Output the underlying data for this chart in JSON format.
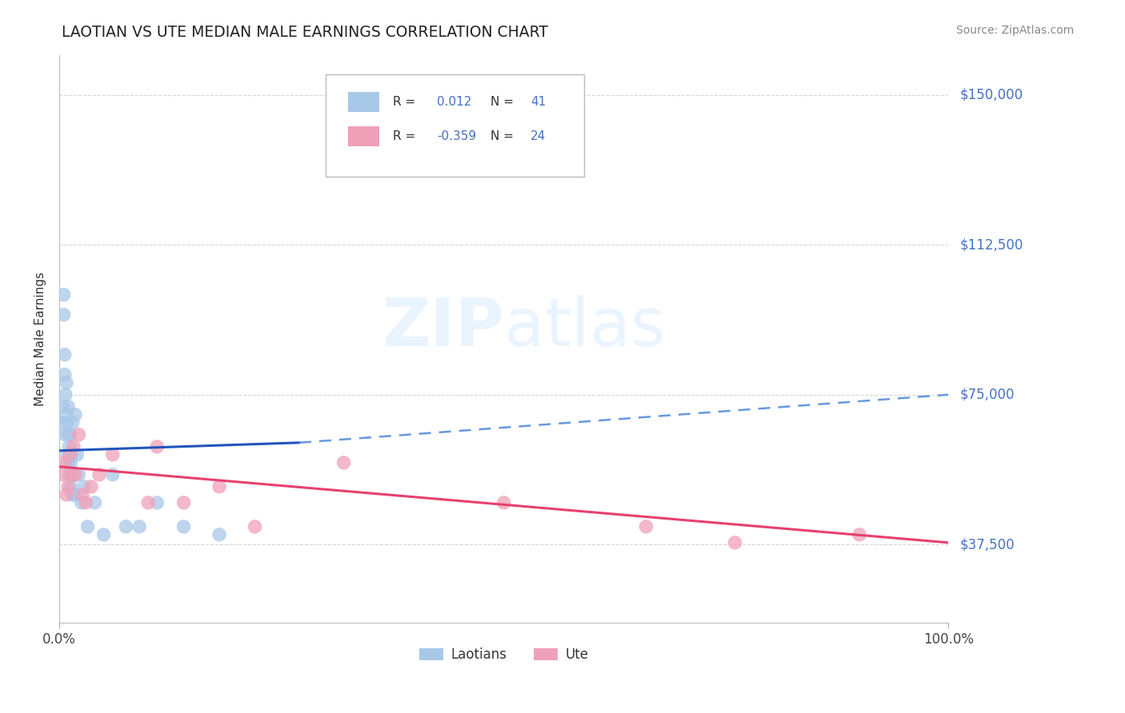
{
  "title": "LAOTIAN VS UTE MEDIAN MALE EARNINGS CORRELATION CHART",
  "source": "Source: ZipAtlas.com",
  "ylabel": "Median Male Earnings",
  "xlim": [
    0,
    1.0
  ],
  "ylim": [
    18000,
    160000
  ],
  "xtick_labels": [
    "0.0%",
    "100.0%"
  ],
  "ytick_values": [
    37500,
    75000,
    112500,
    150000
  ],
  "ytick_labels": [
    "$37,500",
    "$75,000",
    "$112,500",
    "$150,000"
  ],
  "laotian_color": "#a8c8e8",
  "ute_color": "#f0a0b8",
  "trend_laotian_solid_color": "#2255bb",
  "trend_laotian_dash_color": "#6699dd",
  "trend_ute_color": "#e84070",
  "watermark_color": "#ddeeff",
  "background_color": "#ffffff",
  "grid_color": "#cccccc",
  "ytick_color": "#4472c4",
  "laotian_x": [
    0.002,
    0.004,
    0.005,
    0.005,
    0.006,
    0.006,
    0.007,
    0.007,
    0.008,
    0.008,
    0.009,
    0.009,
    0.01,
    0.01,
    0.01,
    0.011,
    0.011,
    0.012,
    0.012,
    0.013,
    0.013,
    0.014,
    0.014,
    0.015,
    0.015,
    0.016,
    0.017,
    0.018,
    0.02,
    0.022,
    0.025,
    0.028,
    0.032,
    0.04,
    0.05,
    0.06,
    0.075,
    0.09,
    0.11,
    0.14,
    0.18
  ],
  "laotian_y": [
    68000,
    72000,
    100000,
    95000,
    85000,
    80000,
    75000,
    65000,
    78000,
    70000,
    68000,
    60000,
    65000,
    58000,
    72000,
    62000,
    55000,
    65000,
    60000,
    58000,
    52000,
    55000,
    60000,
    50000,
    68000,
    55000,
    50000,
    70000,
    60000,
    55000,
    48000,
    52000,
    42000,
    48000,
    40000,
    55000,
    42000,
    42000,
    48000,
    42000,
    40000
  ],
  "ute_x": [
    0.004,
    0.006,
    0.008,
    0.01,
    0.012,
    0.014,
    0.016,
    0.018,
    0.022,
    0.026,
    0.03,
    0.036,
    0.045,
    0.06,
    0.1,
    0.11,
    0.14,
    0.18,
    0.22,
    0.32,
    0.5,
    0.66,
    0.76,
    0.9
  ],
  "ute_y": [
    55000,
    58000,
    50000,
    52000,
    60000,
    55000,
    62000,
    55000,
    65000,
    50000,
    48000,
    52000,
    55000,
    60000,
    48000,
    62000,
    48000,
    52000,
    42000,
    58000,
    48000,
    42000,
    38000,
    40000
  ],
  "trend_lao_x0": 0.0,
  "trend_lao_x_split": 0.27,
  "trend_lao_x1": 1.0,
  "trend_lao_y0": 61000,
  "trend_lao_y_split": 63000,
  "trend_lao_y1": 75000,
  "trend_ute_x0": 0.0,
  "trend_ute_x1": 1.0,
  "trend_ute_y0": 57000,
  "trend_ute_y1": 38000
}
